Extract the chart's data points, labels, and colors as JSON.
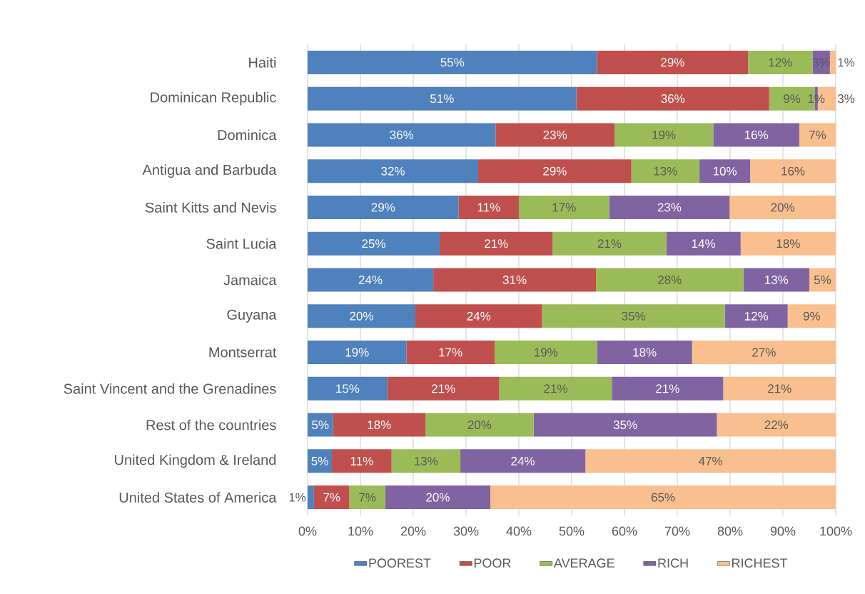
{
  "chart_data": {
    "type": "bar",
    "orientation": "horizontal",
    "stacked": true,
    "categories": [
      "Haiti",
      "Dominican Republic",
      "Dominica",
      "Antigua and Barbuda",
      "Saint Kitts and Nevis",
      "Saint Lucia",
      "Jamaica",
      "Guyana",
      "Montserrat",
      "Saint Vincent and the Grenadines",
      "Rest of the countries",
      "United Kingdom & Ireland",
      "United States of America"
    ],
    "series": [
      {
        "name": "POOREST",
        "color": "#4f81bd",
        "values": [
          54.8,
          50.9,
          35.6,
          32.3,
          28.6,
          25.0,
          23.8,
          20.4,
          18.7,
          15.1,
          4.8,
          4.6,
          1.2
        ],
        "value_labels": [
          "55%",
          "51%",
          "36%",
          "32%",
          "29%",
          "25%",
          "24%",
          "20%",
          "19%",
          "15%",
          "5%",
          "5%",
          "1%"
        ]
      },
      {
        "name": "POOR",
        "color": "#c0504d",
        "values": [
          28.6,
          36.5,
          22.5,
          29.0,
          11.4,
          21.4,
          30.8,
          24.0,
          16.7,
          21.2,
          17.5,
          11.3,
          6.7
        ],
        "value_labels": [
          "29%",
          "36%",
          "23%",
          "29%",
          "11%",
          "21%",
          "31%",
          "24%",
          "17%",
          "21%",
          "18%",
          "11%",
          "7%"
        ]
      },
      {
        "name": "AVERAGE",
        "color": "#9bbb59",
        "values": [
          12.2,
          8.6,
          18.7,
          12.9,
          17.1,
          21.5,
          27.9,
          34.6,
          19.4,
          21.3,
          20.5,
          13.0,
          6.8
        ],
        "value_labels": [
          "12%",
          "9%",
          "19%",
          "13%",
          "17%",
          "21%",
          "28%",
          "35%",
          "19%",
          "21%",
          "20%",
          "13%",
          "7%"
        ]
      },
      {
        "name": "RICH",
        "color": "#8064a2",
        "values": [
          3.3,
          0.6,
          16.3,
          9.6,
          22.8,
          14.1,
          12.5,
          11.9,
          18.0,
          21.1,
          34.7,
          23.7,
          19.9
        ],
        "value_labels": [
          "3%",
          "1%",
          "16%",
          "10%",
          "23%",
          "14%",
          "13%",
          "12%",
          "18%",
          "21%",
          "35%",
          "24%",
          "20%"
        ]
      },
      {
        "name": "RICHEST",
        "color": "#f9bf8f",
        "values": [
          1.1,
          3.4,
          6.9,
          16.2,
          20.1,
          18.0,
          5.0,
          9.1,
          27.2,
          21.3,
          22.5,
          47.4,
          65.4
        ],
        "value_labels": [
          "1%",
          "3%",
          "7%",
          "16%",
          "20%",
          "18%",
          "5%",
          "9%",
          "27%",
          "21%",
          "22%",
          "47%",
          "65%"
        ]
      }
    ],
    "xlim": [
      0,
      100
    ],
    "xticks": [
      {
        "value": 0,
        "label": "0%"
      },
      {
        "value": 10,
        "label": "10%"
      },
      {
        "value": 20,
        "label": "20%"
      },
      {
        "value": 30,
        "label": "30%"
      },
      {
        "value": 40,
        "label": "40%"
      },
      {
        "value": 50,
        "label": "50%"
      },
      {
        "value": 60,
        "label": "60%"
      },
      {
        "value": 70,
        "label": "70%"
      },
      {
        "value": 80,
        "label": "80%"
      },
      {
        "value": 90,
        "label": "90%"
      },
      {
        "value": 100,
        "label": "100%"
      }
    ],
    "grid": "x",
    "legend": "bottom"
  }
}
